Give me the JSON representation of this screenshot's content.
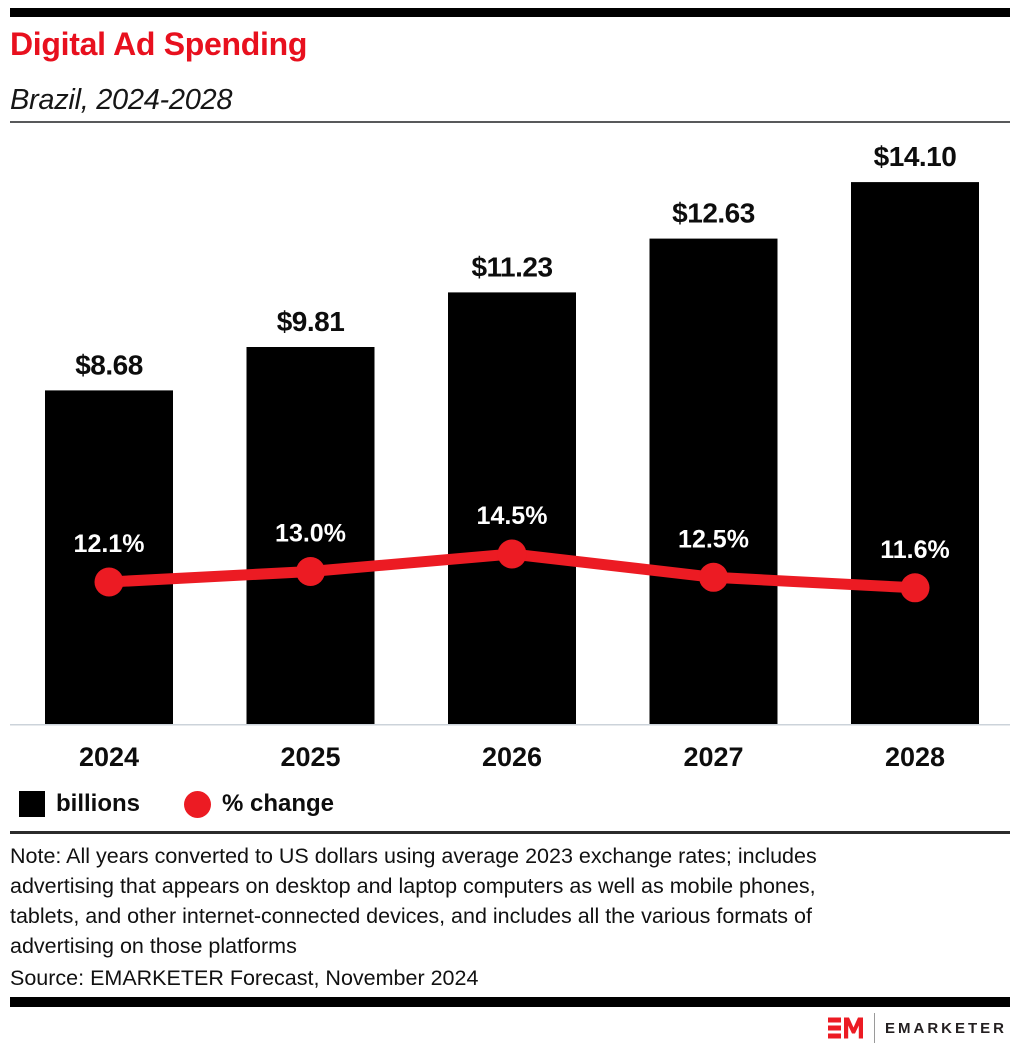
{
  "header": {
    "title": "Digital Ad Spending",
    "subtitle": "Brazil, 2024-2028"
  },
  "chart_data": {
    "type": "bar+line",
    "categories": [
      "2024",
      "2025",
      "2026",
      "2027",
      "2028"
    ],
    "series": [
      {
        "name": "billions",
        "type": "bar",
        "values": [
          8.68,
          9.81,
          11.23,
          12.63,
          14.1
        ],
        "labels": [
          "$8.68",
          "$9.81",
          "$11.23",
          "$12.63",
          "$14.10"
        ],
        "color": "#000000"
      },
      {
        "name": "% change",
        "type": "line",
        "values": [
          12.1,
          13.0,
          14.5,
          12.5,
          11.6
        ],
        "labels": [
          "12.1%",
          "13.0%",
          "14.5%",
          "12.5%",
          "11.6%"
        ],
        "color": "#EC1B23"
      }
    ],
    "xlabel": "",
    "ylabel": "",
    "ylim_bar": [
      0,
      15.5
    ],
    "ylim_line_pct": [
      0,
      50.9
    ],
    "grid": false,
    "legend_position": "bottom",
    "bar_value_labels_position": "above-bar",
    "pct_labels_position": "above-point-on-bar",
    "pct_label_color": "#ffffff"
  },
  "legend": {
    "items": [
      {
        "label": "billions",
        "swatch": "square",
        "color": "#000000"
      },
      {
        "label": "% change",
        "swatch": "circle",
        "color": "#EC1B23"
      }
    ]
  },
  "note_lines": [
    "Note: All years converted to US dollars using average 2023 exchange rates; includes",
    "advertising that appears on desktop and laptop computers as well as mobile phones,",
    "tablets, and other internet-connected devices, and includes all the various formats of",
    "advertising on those platforms"
  ],
  "source": "Source: EMARKETER Forecast, November 2024",
  "footer": {
    "logo_mark": "EM",
    "logo_text": "EMARKETER"
  },
  "colors": {
    "accent_red": "#EC1B23",
    "title_red": "#E8101E",
    "bar_black": "#000000",
    "axis_line": "#ccd3da",
    "text_black": "#0d0d0d"
  }
}
